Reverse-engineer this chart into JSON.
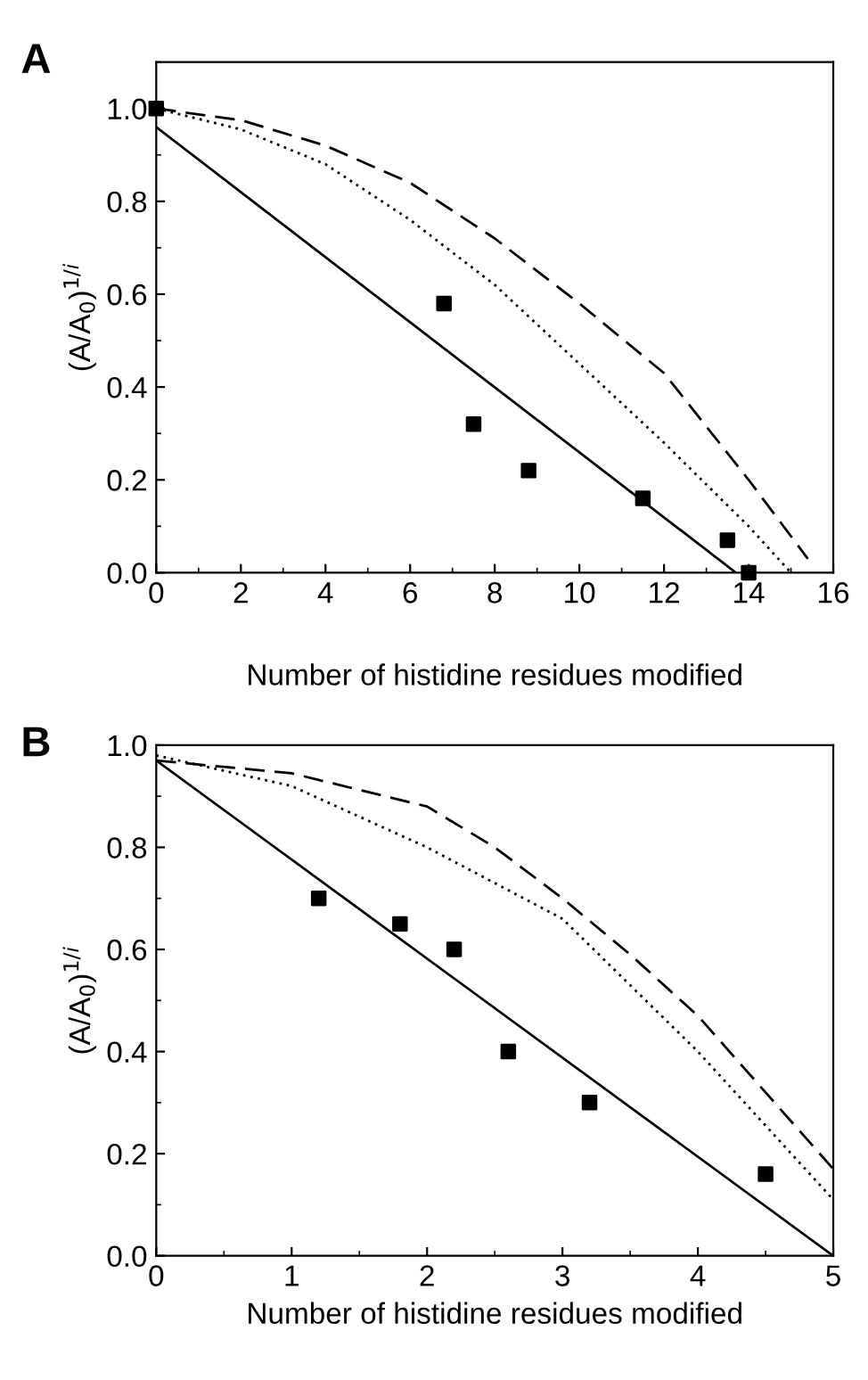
{
  "chart_data": [
    {
      "type": "line",
      "title": "A",
      "xlabel": "Number of histidine residues modified",
      "ylabel": "(A/A$_{0}$)$^{1/i}$",
      "xlim": [
        0,
        16
      ],
      "ylim": [
        0,
        1.1
      ],
      "xticks": [
        0,
        2,
        4,
        6,
        8,
        10,
        12,
        14,
        16
      ],
      "yticks": [
        {
          "value": 0,
          "label": "0.0"
        },
        {
          "value": 0.2,
          "label": "0.2"
        },
        {
          "value": 0.4,
          "label": "0.4"
        },
        {
          "value": 0.6,
          "label": "0.6"
        },
        {
          "value": 0.8,
          "label": "0.8"
        },
        {
          "value": 1,
          "label": "1.0"
        }
      ],
      "grid": false,
      "legend": false,
      "series": [
        {
          "type": "scatter",
          "marker": "square",
          "color": "#000000",
          "x": [
            0,
            6.8,
            7.5,
            8.8,
            11.5,
            13.5,
            14
          ],
          "values": [
            1.0,
            0.58,
            0.32,
            0.22,
            0.16,
            0.07,
            0.0
          ]
        },
        {
          "line_style": "solid",
          "color": "#000000",
          "x": [
            0,
            13.7
          ],
          "values": [
            0.96,
            0.0
          ]
        },
        {
          "line_style": "dotted",
          "color": "#000000",
          "x": [
            0,
            2,
            4,
            6,
            8,
            10,
            12,
            14,
            15
          ],
          "values": [
            1.0,
            0.955,
            0.88,
            0.76,
            0.62,
            0.45,
            0.28,
            0.1,
            0.0
          ]
        },
        {
          "line_style": "dashed",
          "color": "#000000",
          "x": [
            0,
            2,
            4,
            6,
            8,
            10,
            12,
            14,
            15.4
          ],
          "values": [
            1.0,
            0.975,
            0.92,
            0.84,
            0.72,
            0.58,
            0.43,
            0.2,
            0.03
          ]
        }
      ]
    },
    {
      "type": "line",
      "title": "B",
      "xlabel": "Number of histidine residues modified",
      "ylabel": "(A/A$_{0}$)$^{1/i}$",
      "xlim": [
        0,
        5
      ],
      "ylim": [
        0,
        1.0
      ],
      "xticks": [
        0,
        1,
        2,
        3,
        4,
        5
      ],
      "yticks": [
        {
          "value": 0,
          "label": "0.0"
        },
        {
          "value": 0.2,
          "label": "0.2"
        },
        {
          "value": 0.4,
          "label": "0.4"
        },
        {
          "value": 0.6,
          "label": "0.6"
        },
        {
          "value": 0.8,
          "label": "0.8"
        },
        {
          "value": 1,
          "label": "1.0"
        }
      ],
      "grid": false,
      "legend": false,
      "series": [
        {
          "type": "scatter",
          "marker": "square",
          "color": "#000000",
          "x": [
            1.2,
            1.8,
            2.2,
            2.6,
            3.2,
            4.5
          ],
          "values": [
            0.7,
            0.65,
            0.6,
            0.4,
            0.3,
            0.16
          ]
        },
        {
          "line_style": "solid",
          "color": "#000000",
          "x": [
            0,
            5
          ],
          "values": [
            0.97,
            0.0
          ]
        },
        {
          "line_style": "dotted",
          "color": "#000000",
          "x": [
            0,
            1,
            2,
            3,
            4,
            5
          ],
          "values": [
            0.98,
            0.92,
            0.8,
            0.66,
            0.4,
            0.11
          ]
        },
        {
          "line_style": "dashed",
          "color": "#000000",
          "x": [
            0,
            1,
            2,
            2.5,
            3,
            3.5,
            4,
            4.5,
            5
          ],
          "values": [
            0.97,
            0.945,
            0.88,
            0.8,
            0.7,
            0.59,
            0.47,
            0.32,
            0.17
          ]
        }
      ]
    }
  ]
}
